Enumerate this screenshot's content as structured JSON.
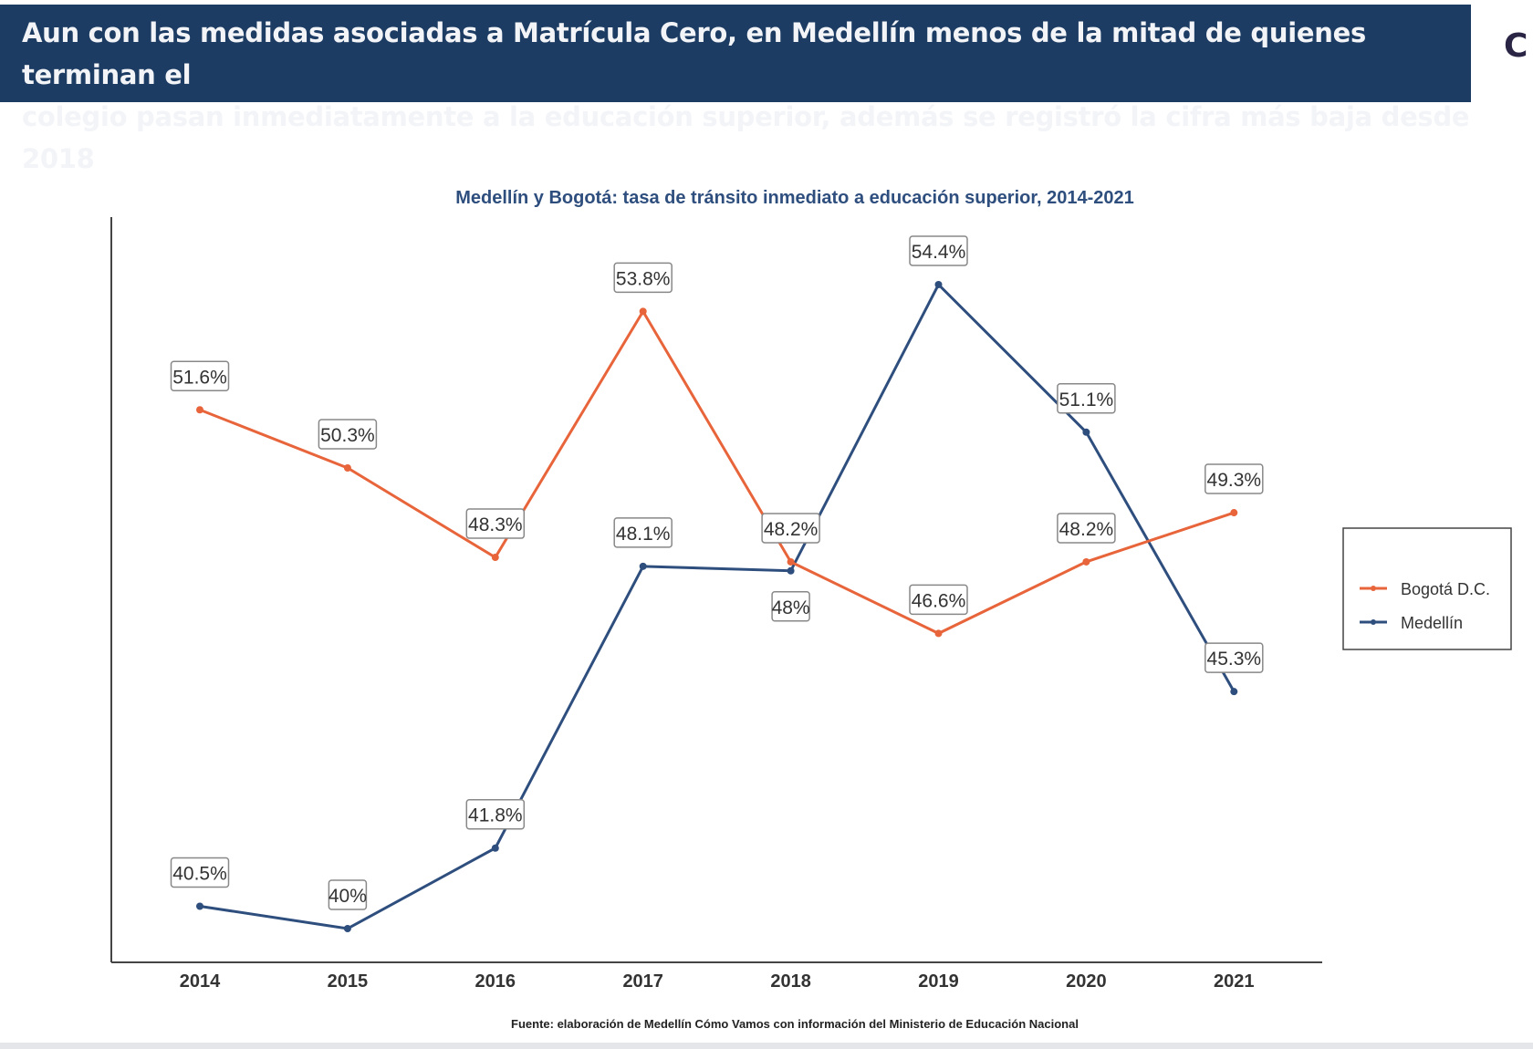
{
  "header": {
    "title_line1": "Aun con las medidas asociadas a Matrícula Cero, en Medellín menos de la mitad de quienes terminan el",
    "title_line2": "colegio pasan inmediatamente a la educación superior, además se registró la cifra más baja desde 2018",
    "logo_text": "C"
  },
  "chart_data": {
    "type": "line",
    "title": "Medellín y Bogotá: tasa de tránsito inmediato a educación superior, 2014-2021",
    "source": "Fuente: elaboración de Medellín Cómo Vamos con información del Ministerio de Educación Nacional",
    "xlabel": "",
    "ylabel": "",
    "categories": [
      "2014",
      "2015",
      "2016",
      "2017",
      "2018",
      "2019",
      "2020",
      "2021"
    ],
    "ylim": [
      40,
      54.4
    ],
    "grid": false,
    "legend_position": "right",
    "series": [
      {
        "name": "Bogotá D.C.",
        "color": "#e8643a",
        "values": [
          51.6,
          50.3,
          48.3,
          53.8,
          48.2,
          46.6,
          48.2,
          49.3
        ],
        "labels": [
          "51.6%",
          "50.3%",
          "48.3%",
          "53.8%",
          "48.2%",
          "46.6%",
          "48.2%",
          "49.3%"
        ]
      },
      {
        "name": "Medellín",
        "color": "#2e4e7e",
        "values": [
          40.5,
          40,
          41.8,
          48.1,
          48,
          54.4,
          51.1,
          45.3
        ],
        "labels": [
          "40.5%",
          "40%",
          "41.8%",
          "48.1%",
          "48%",
          "54.4%",
          "51.1%",
          "45.3%"
        ]
      }
    ]
  }
}
